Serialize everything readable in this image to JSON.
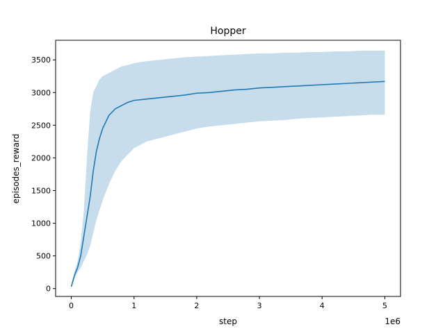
{
  "chart_data": {
    "type": "line",
    "title": "Hopper",
    "xlabel": "step",
    "ylabel": "episodes_reward",
    "x_offset_label": "1e6",
    "xlim": [
      -0.25,
      5.25
    ],
    "ylim": [
      -120,
      3800
    ],
    "xticks": [
      0,
      1,
      2,
      3,
      4,
      5
    ],
    "xtick_labels": [
      "0",
      "1",
      "2",
      "3",
      "4",
      "5"
    ],
    "yticks": [
      0,
      500,
      1000,
      1500,
      2000,
      2500,
      3000,
      3500
    ],
    "ytick_labels": [
      "0",
      "500",
      "1000",
      "1500",
      "2000",
      "2500",
      "3000",
      "3500"
    ],
    "grid": false,
    "legend": "none",
    "x_units": "steps ×1e6",
    "colors": {
      "line": "#1f77b4",
      "band": "#1f77b4",
      "band_opacity": 0.25
    },
    "series": [
      {
        "x": [
          0.0,
          0.05,
          0.1,
          0.15,
          0.2,
          0.25,
          0.3,
          0.35,
          0.4,
          0.45,
          0.5,
          0.6,
          0.7,
          0.8,
          0.9,
          1.0,
          1.2,
          1.4,
          1.6,
          1.8,
          2.0,
          2.2,
          2.4,
          2.6,
          2.8,
          3.0,
          3.2,
          3.4,
          3.6,
          3.8,
          4.0,
          4.2,
          4.4,
          4.6,
          4.8,
          5.0
        ],
        "mean": [
          30,
          200,
          320,
          500,
          800,
          1100,
          1400,
          1800,
          2100,
          2300,
          2450,
          2650,
          2750,
          2800,
          2850,
          2880,
          2900,
          2920,
          2940,
          2960,
          2990,
          3000,
          3020,
          3040,
          3050,
          3070,
          3080,
          3090,
          3100,
          3110,
          3120,
          3130,
          3140,
          3150,
          3160,
          3170
        ],
        "lower": [
          20,
          150,
          250,
          320,
          420,
          520,
          650,
          850,
          1050,
          1200,
          1350,
          1600,
          1800,
          1950,
          2050,
          2150,
          2250,
          2300,
          2350,
          2400,
          2450,
          2480,
          2500,
          2520,
          2540,
          2560,
          2570,
          2580,
          2600,
          2610,
          2620,
          2630,
          2640,
          2650,
          2660,
          2660
        ],
        "upper": [
          40,
          260,
          420,
          700,
          1200,
          2000,
          2700,
          3000,
          3100,
          3200,
          3250,
          3300,
          3350,
          3400,
          3420,
          3450,
          3480,
          3500,
          3520,
          3540,
          3550,
          3560,
          3570,
          3580,
          3590,
          3600,
          3600,
          3610,
          3610,
          3620,
          3620,
          3630,
          3630,
          3640,
          3640,
          3640
        ]
      }
    ]
  }
}
